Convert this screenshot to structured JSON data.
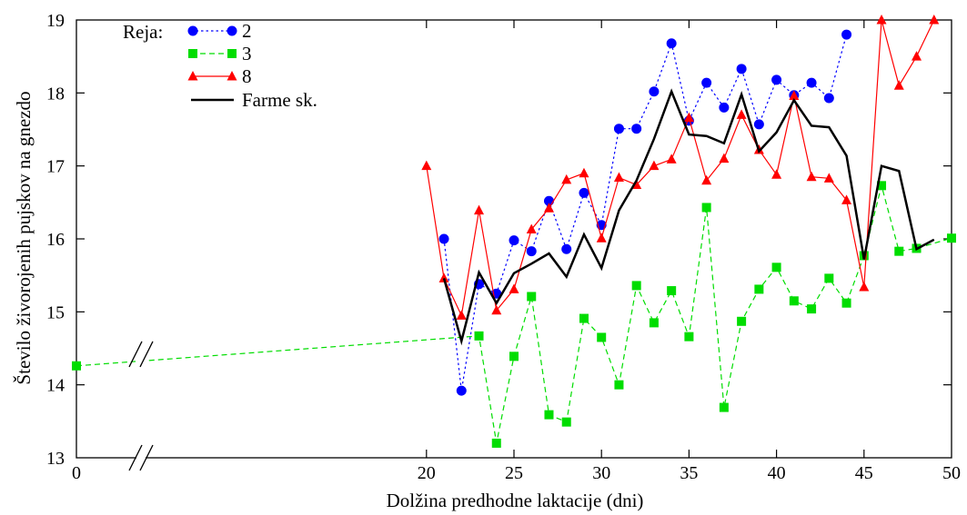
{
  "chart_data": {
    "type": "line",
    "title": "",
    "xlabel": "Dolžina predhodne laktacije (dni)",
    "ylabel": "Število živorojenih pujskov na gnezdo",
    "xlim": [
      0,
      50
    ],
    "ylim": [
      13,
      19
    ],
    "x_ticks": [
      "0",
      "20",
      "25",
      "30",
      "35",
      "40",
      "45",
      "50"
    ],
    "y_ticks": [
      "13",
      "14",
      "15",
      "16",
      "17",
      "18",
      "19"
    ],
    "x_axis_break": "between 0 and 20",
    "grid": false,
    "legend": {
      "title": "Reja:",
      "position": "top-left"
    },
    "series": [
      {
        "name": "2",
        "color": "#0000ff",
        "line": "dotted",
        "marker": "circle",
        "x": [
          21,
          22,
          23,
          24,
          25,
          26,
          27,
          28,
          29,
          30,
          31,
          32,
          33,
          34,
          35,
          36,
          37,
          38,
          39,
          40,
          41,
          42,
          43,
          44
        ],
        "y": [
          16.0,
          13.92,
          15.38,
          15.25,
          15.98,
          15.83,
          16.52,
          15.86,
          16.63,
          16.19,
          17.51,
          17.51,
          18.02,
          18.68,
          17.62,
          18.14,
          17.8,
          18.33,
          17.57,
          18.18,
          17.97,
          18.14,
          17.93,
          18.8
        ]
      },
      {
        "name": "3",
        "color": "#00dd00",
        "line": "dashed",
        "marker": "square",
        "x": [
          0,
          23,
          24,
          25,
          26,
          27,
          28,
          29,
          30,
          31,
          32,
          33,
          34,
          35,
          36,
          37,
          38,
          39,
          40,
          41,
          42,
          43,
          44,
          45,
          46,
          47,
          48,
          50
        ],
        "y": [
          14.26,
          14.67,
          13.2,
          14.39,
          15.21,
          13.59,
          13.49,
          14.91,
          14.65,
          14.0,
          15.36,
          14.85,
          15.29,
          14.66,
          16.43,
          13.69,
          14.87,
          15.31,
          15.61,
          15.15,
          15.04,
          15.46,
          15.12,
          15.77,
          16.73,
          15.83,
          15.87,
          16.01
        ]
      },
      {
        "name": "8",
        "color": "#ff0000",
        "line": "solid",
        "marker": "triangle",
        "x": [
          20,
          21,
          22,
          23,
          24,
          25,
          26,
          27,
          28,
          29,
          30,
          31,
          32,
          33,
          34,
          35,
          36,
          37,
          38,
          39,
          40,
          41,
          42,
          43,
          44,
          45,
          46,
          47,
          48,
          49
        ],
        "y": [
          17.0,
          15.46,
          14.95,
          16.39,
          15.02,
          15.31,
          16.13,
          16.42,
          16.81,
          16.9,
          16.01,
          16.84,
          16.74,
          17.0,
          17.09,
          17.66,
          16.8,
          17.1,
          17.7,
          17.22,
          16.88,
          17.96,
          16.85,
          16.83,
          16.53,
          15.34,
          19.0,
          18.1,
          18.5,
          19.0
        ]
      },
      {
        "name": "Farme sk.",
        "color": "#000000",
        "line": "solid-thick",
        "marker": "none",
        "x": [
          21,
          22,
          23,
          24,
          25,
          26,
          27,
          28,
          29,
          30,
          31,
          32,
          33,
          34,
          35,
          36,
          37,
          38,
          39,
          40,
          41,
          42,
          43,
          44,
          45,
          46,
          47,
          48,
          49
        ],
        "y": [
          15.46,
          14.6,
          15.54,
          15.12,
          15.53,
          15.66,
          15.8,
          15.48,
          16.06,
          15.6,
          16.39,
          16.8,
          17.37,
          18.02,
          17.43,
          17.41,
          17.31,
          17.98,
          17.2,
          17.46,
          17.9,
          17.55,
          17.53,
          17.14,
          15.72,
          17.0,
          16.93,
          15.86,
          15.99
        ]
      }
    ]
  }
}
